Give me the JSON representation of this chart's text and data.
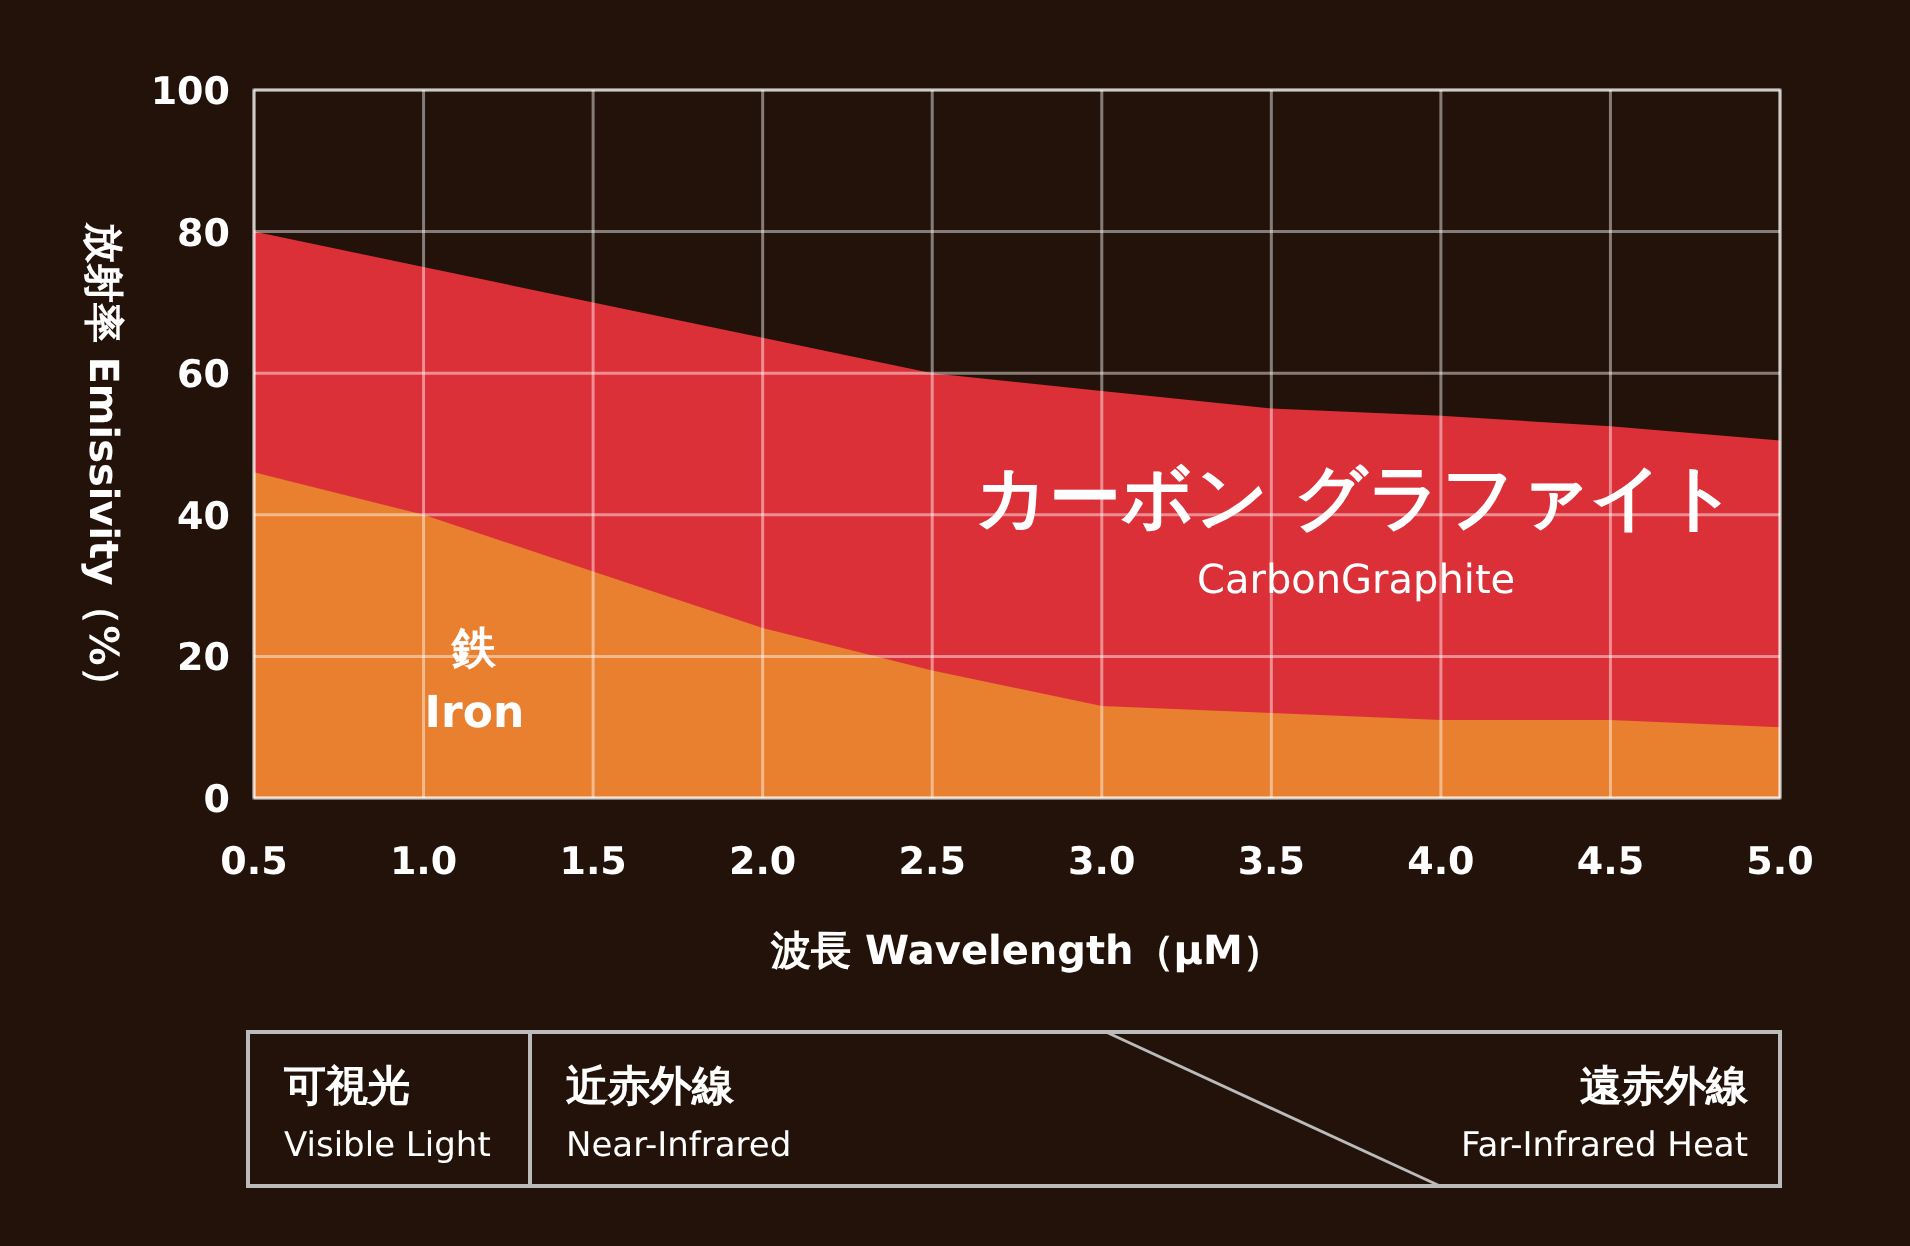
{
  "chart_data": {
    "type": "area",
    "xlabel": "波長 Wavelength（μM）",
    "ylabel": "放射率 Emissivity（%）",
    "x": [
      0.5,
      1.0,
      1.5,
      2.0,
      2.5,
      3.0,
      3.5,
      4.0,
      4.5,
      5.0
    ],
    "series": [
      {
        "name": "カーボン グラファイト",
        "color": "#dc3038",
        "values": [
          80,
          75,
          70,
          65,
          60,
          57.5,
          55,
          54,
          52.5,
          50.5
        ]
      },
      {
        "name": "鉄",
        "color": "#e8802f",
        "values": [
          46,
          40,
          32,
          24,
          18,
          13,
          12,
          11,
          11,
          10
        ]
      }
    ],
    "xlim": [
      0.5,
      5.0
    ],
    "ylim": [
      0,
      100
    ],
    "xticks": [
      0.5,
      {
        "value": 1,
        "label": "1.0"
      },
      1.5,
      {
        "value": 2,
        "label": "2.0"
      },
      2.5,
      {
        "value": 3,
        "label": "3.0"
      },
      3.5,
      {
        "value": 4,
        "label": "4.0"
      },
      4.5,
      {
        "value": 5,
        "label": "5.0"
      }
    ],
    "yticks": [
      0,
      20,
      40,
      60,
      80,
      100
    ],
    "grid": true,
    "annotations": [
      "CarbonGraphite",
      "Iron",
      "可視光",
      "Visible Light",
      "近赤外線",
      "Near-Infrared",
      "遠赤外線",
      "Far-Infrared Heat"
    ]
  }
}
